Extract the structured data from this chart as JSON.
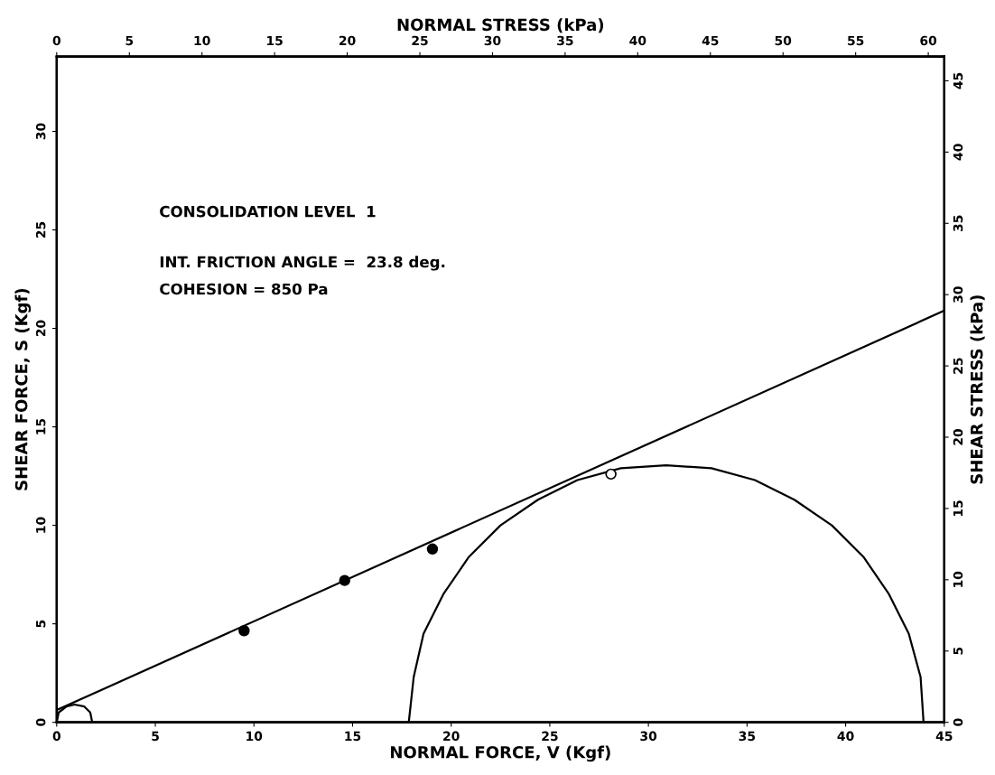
{
  "chart_data": {
    "type": "scatter",
    "xlabel": "NORMAL FORCE, V (Kgf)",
    "ylabel": "SHEAR FORCE, S (Kgf)",
    "y2label": "SHEAR STRESS (kPa)",
    "x2label": "NORMAL STRESS (kPa)",
    "annotations": [
      "CONSOLIDATION LEVEL  1",
      "INT. FRICTION ANGLE =  23.8 deg.",
      "COHESION = 850 Pa"
    ],
    "xlim": [
      0,
      45
    ],
    "xticks": [
      0,
      5,
      10,
      15,
      20,
      25,
      30,
      35,
      40,
      45
    ],
    "ylim": [
      0,
      33.8
    ],
    "yticks": [
      0,
      5,
      10,
      15,
      20,
      25,
      30
    ],
    "x2lim": [
      0,
      61.1
    ],
    "x2ticks": [
      0,
      5,
      10,
      15,
      20,
      25,
      30,
      35,
      40,
      45,
      50,
      55,
      60
    ],
    "y2lim": [
      0,
      46.7
    ],
    "y2ticks": [
      0,
      5,
      10,
      15,
      20,
      25,
      30,
      35,
      40,
      45
    ],
    "grid": false,
    "series": [
      {
        "type": "line",
        "color": "#000000",
        "marker": "none",
        "x": [
          0,
          45
        ],
        "values": [
          0.62,
          20.9
        ]
      },
      {
        "type": "line",
        "color": "#000000",
        "marker": "none",
        "x": [
          0.0,
          0.1,
          0.5,
          0.9,
          1.4,
          1.7,
          1.8
        ],
        "values": [
          0,
          0.5,
          0.8,
          0.9,
          0.8,
          0.5,
          0
        ]
      },
      {
        "type": "line",
        "color": "#000000",
        "marker": "none",
        "x": [
          17.85,
          18.1,
          18.6,
          19.6,
          20.9,
          22.5,
          24.4,
          26.4,
          28.6,
          30.9,
          33.2,
          35.4,
          37.4,
          39.3,
          40.9,
          42.2,
          43.2,
          43.8,
          43.95
        ],
        "values": [
          0,
          2.3,
          4.5,
          6.5,
          8.4,
          10.0,
          11.3,
          12.3,
          12.9,
          13.05,
          12.9,
          12.3,
          11.3,
          10.0,
          8.4,
          6.5,
          4.5,
          2.3,
          0
        ]
      },
      {
        "color": "#000000",
        "marker": "circle",
        "x": [
          9.5,
          14.6,
          19.05
        ],
        "values": [
          4.65,
          7.2,
          8.8
        ]
      },
      {
        "color": "#ffffff",
        "marker": "circle",
        "x": [
          28.1
        ],
        "values": [
          12.6
        ]
      }
    ]
  }
}
